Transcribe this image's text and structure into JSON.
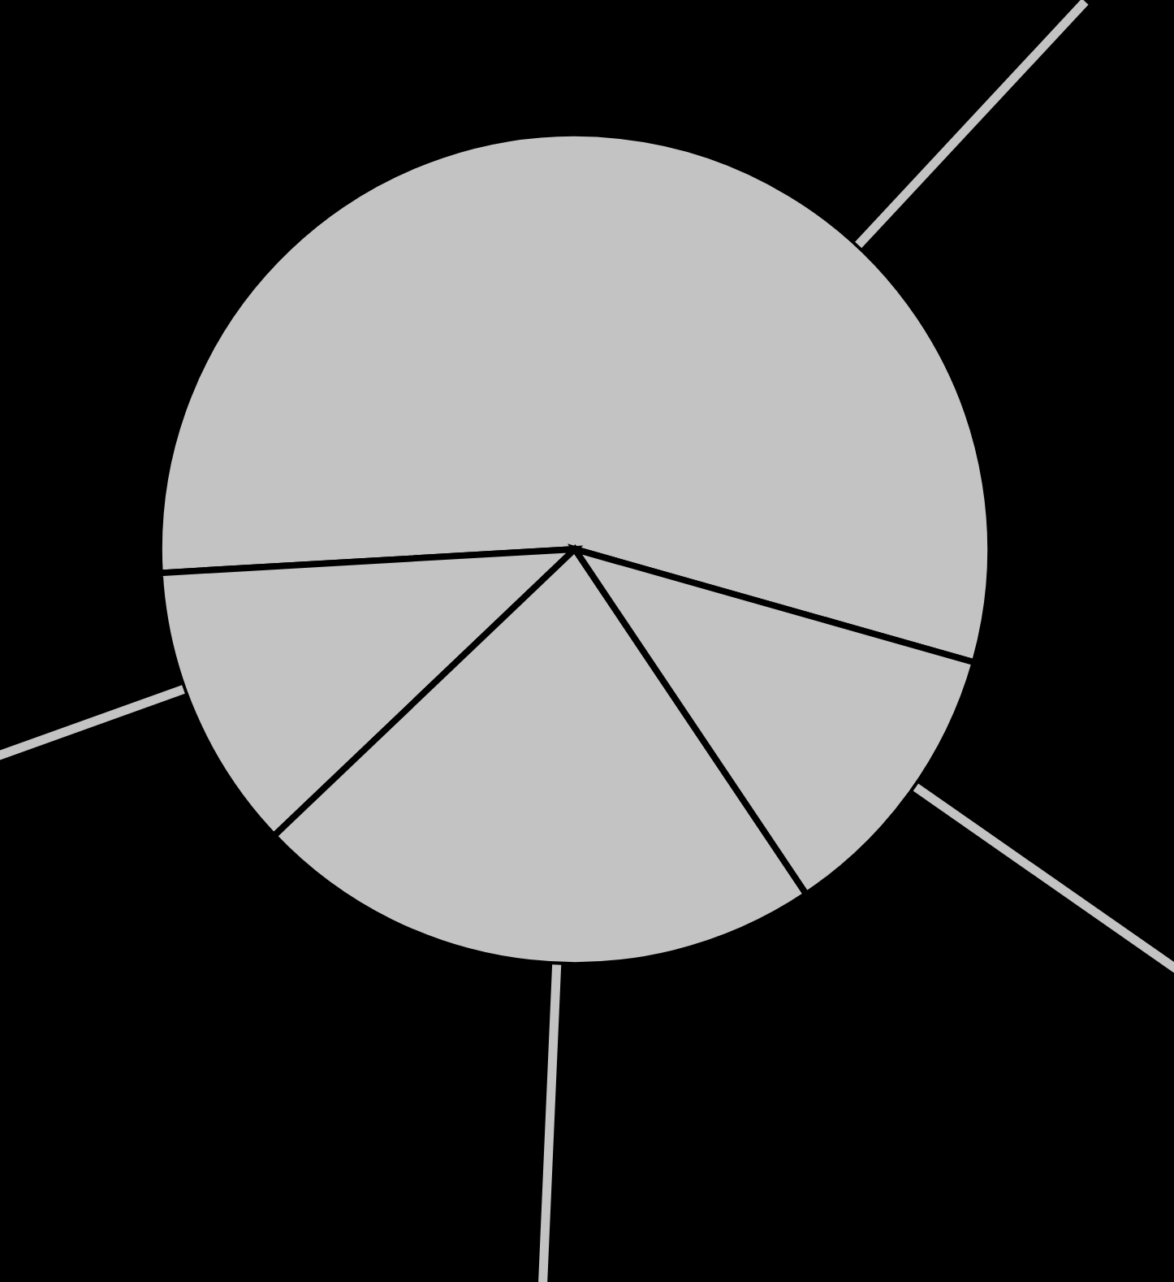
{
  "chart_data": {
    "type": "pie",
    "categories": [
      null,
      null,
      null,
      null
    ],
    "values": [
      55.3,
      11.2,
      22.3,
      11.2
    ],
    "colors": [
      "#c4c3c4",
      "#c4c3c4",
      "#c4c3c4",
      "#c4c3c4"
    ]
  }
}
